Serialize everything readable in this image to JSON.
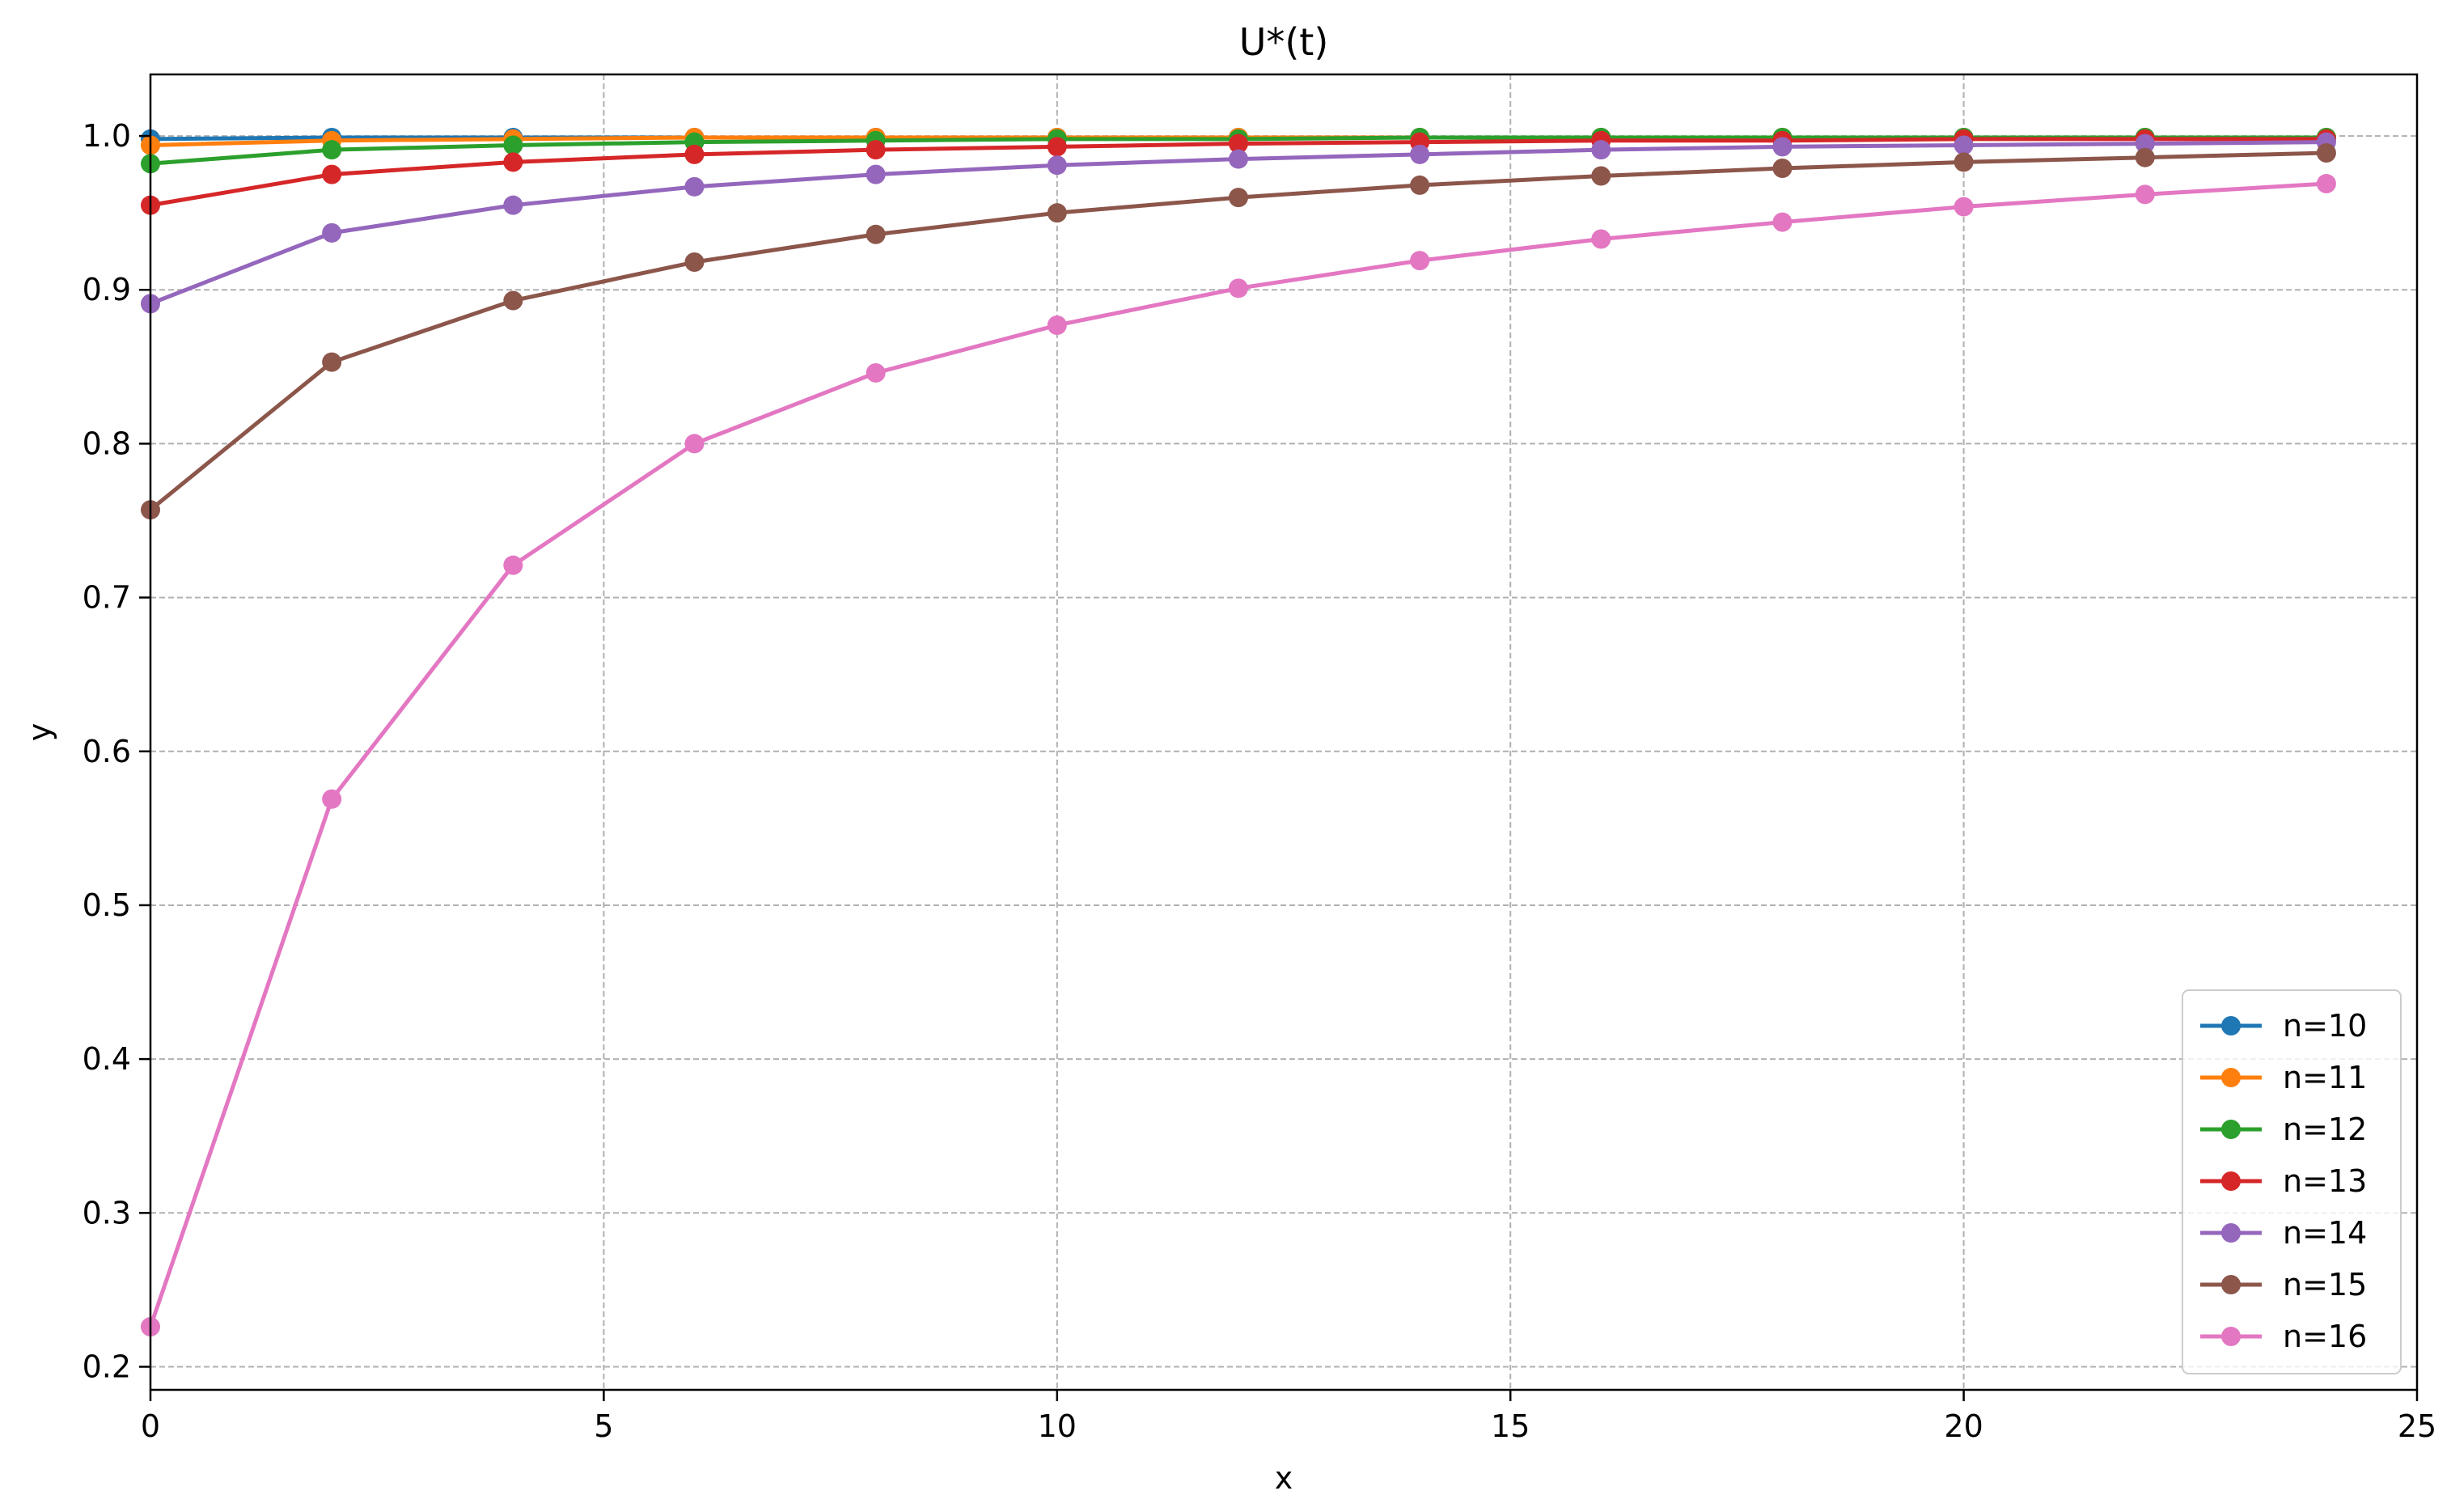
{
  "chart_data": {
    "type": "line",
    "title": "U*(t)",
    "xlabel": "x",
    "ylabel": "y",
    "xlim": [
      0,
      25
    ],
    "ylim": [
      0.185,
      1.04
    ],
    "xticks": [
      0,
      5,
      10,
      15,
      20,
      25
    ],
    "yticks": [
      0.2,
      0.3,
      0.4,
      0.5,
      0.6,
      0.7,
      0.8,
      0.9,
      1.0
    ],
    "xtick_labels": [
      "0",
      "5",
      "10",
      "15",
      "20",
      "25"
    ],
    "ytick_labels": [
      "0.2",
      "0.3",
      "0.4",
      "0.5",
      "0.6",
      "0.7",
      "0.8",
      "0.9",
      "1.0"
    ],
    "grid": true,
    "legend_position": "lower-right",
    "x": [
      0,
      2,
      4,
      6,
      8,
      10,
      12,
      14,
      16,
      18,
      20,
      22,
      24
    ],
    "series": [
      {
        "name": "n=10",
        "color": "#1f77b4",
        "values": [
          0.998,
          0.999,
          0.999,
          0.999,
          0.999,
          0.999,
          0.999,
          0.999,
          0.999,
          0.999,
          0.999,
          0.999,
          0.999
        ]
      },
      {
        "name": "n=11",
        "color": "#ff7f0e",
        "values": [
          0.994,
          0.997,
          0.998,
          0.999,
          0.999,
          0.999,
          0.999,
          0.999,
          0.999,
          0.999,
          0.999,
          0.999,
          0.999
        ]
      },
      {
        "name": "n=12",
        "color": "#2ca02c",
        "values": [
          0.982,
          0.991,
          0.994,
          0.996,
          0.997,
          0.998,
          0.998,
          0.999,
          0.999,
          0.999,
          0.999,
          0.999,
          0.999
        ]
      },
      {
        "name": "n=13",
        "color": "#d62728",
        "values": [
          0.955,
          0.975,
          0.983,
          0.988,
          0.991,
          0.993,
          0.995,
          0.996,
          0.997,
          0.997,
          0.998,
          0.998,
          0.998
        ]
      },
      {
        "name": "n=14",
        "color": "#9467bd",
        "values": [
          0.891,
          0.937,
          0.955,
          0.967,
          0.975,
          0.981,
          0.985,
          0.988,
          0.991,
          0.993,
          0.994,
          0.995,
          0.996
        ]
      },
      {
        "name": "n=15",
        "color": "#8c564b",
        "values": [
          0.757,
          0.853,
          0.893,
          0.918,
          0.936,
          0.95,
          0.96,
          0.968,
          0.974,
          0.979,
          0.983,
          0.986,
          0.989
        ]
      },
      {
        "name": "n=16",
        "color": "#e377c2",
        "values": [
          0.226,
          0.569,
          0.721,
          0.8,
          0.846,
          0.877,
          0.901,
          0.919,
          0.933,
          0.944,
          0.954,
          0.962,
          0.969
        ]
      }
    ]
  }
}
